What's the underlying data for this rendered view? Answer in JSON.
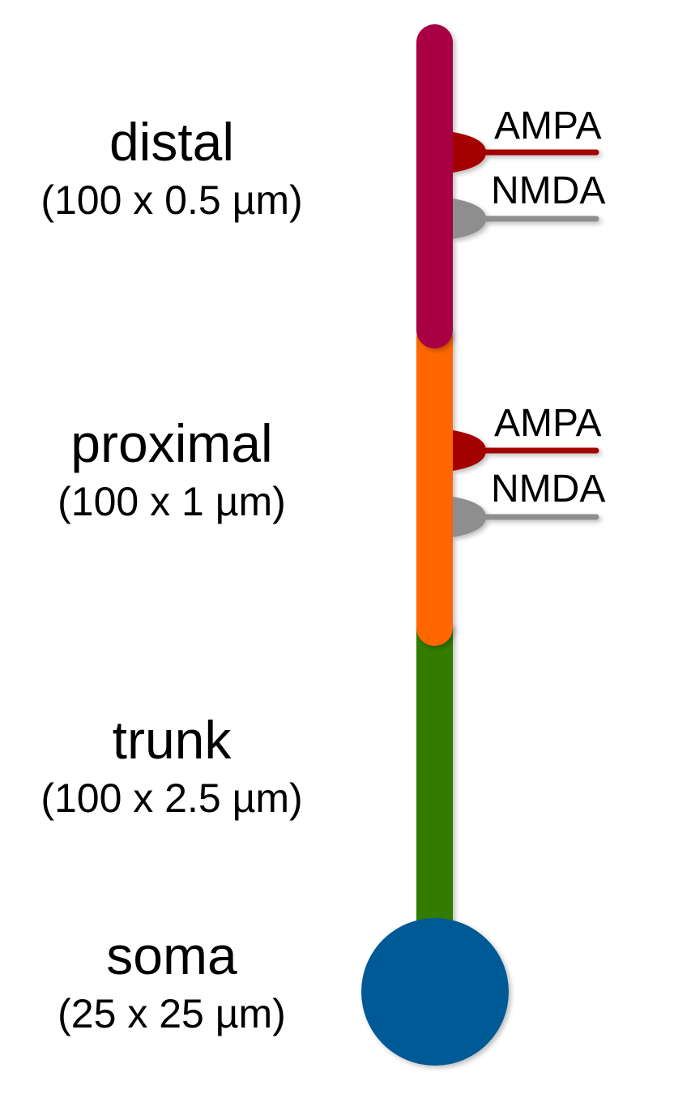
{
  "compartments": {
    "distal": {
      "name": "distal",
      "dims": "(100 x 0.5 µm)",
      "color": "#a80044"
    },
    "proximal": {
      "name": "proximal",
      "dims": "(100 x 1 µm)",
      "color": "#ff6600"
    },
    "trunk": {
      "name": "trunk",
      "dims": "(100 x 2.5 µm)",
      "color": "#337b00"
    },
    "soma": {
      "name": "soma",
      "dims": "(25 x 25 µm)",
      "color": "#005a96"
    }
  },
  "synapses": {
    "distal": {
      "ampa_label": "AMPA",
      "nmda_label": "NMDA"
    },
    "proximal": {
      "ampa_label": "AMPA",
      "nmda_label": "NMDA"
    }
  },
  "receptor_colors": {
    "ampa": "#a40000",
    "nmda": "#8e8e8e"
  }
}
